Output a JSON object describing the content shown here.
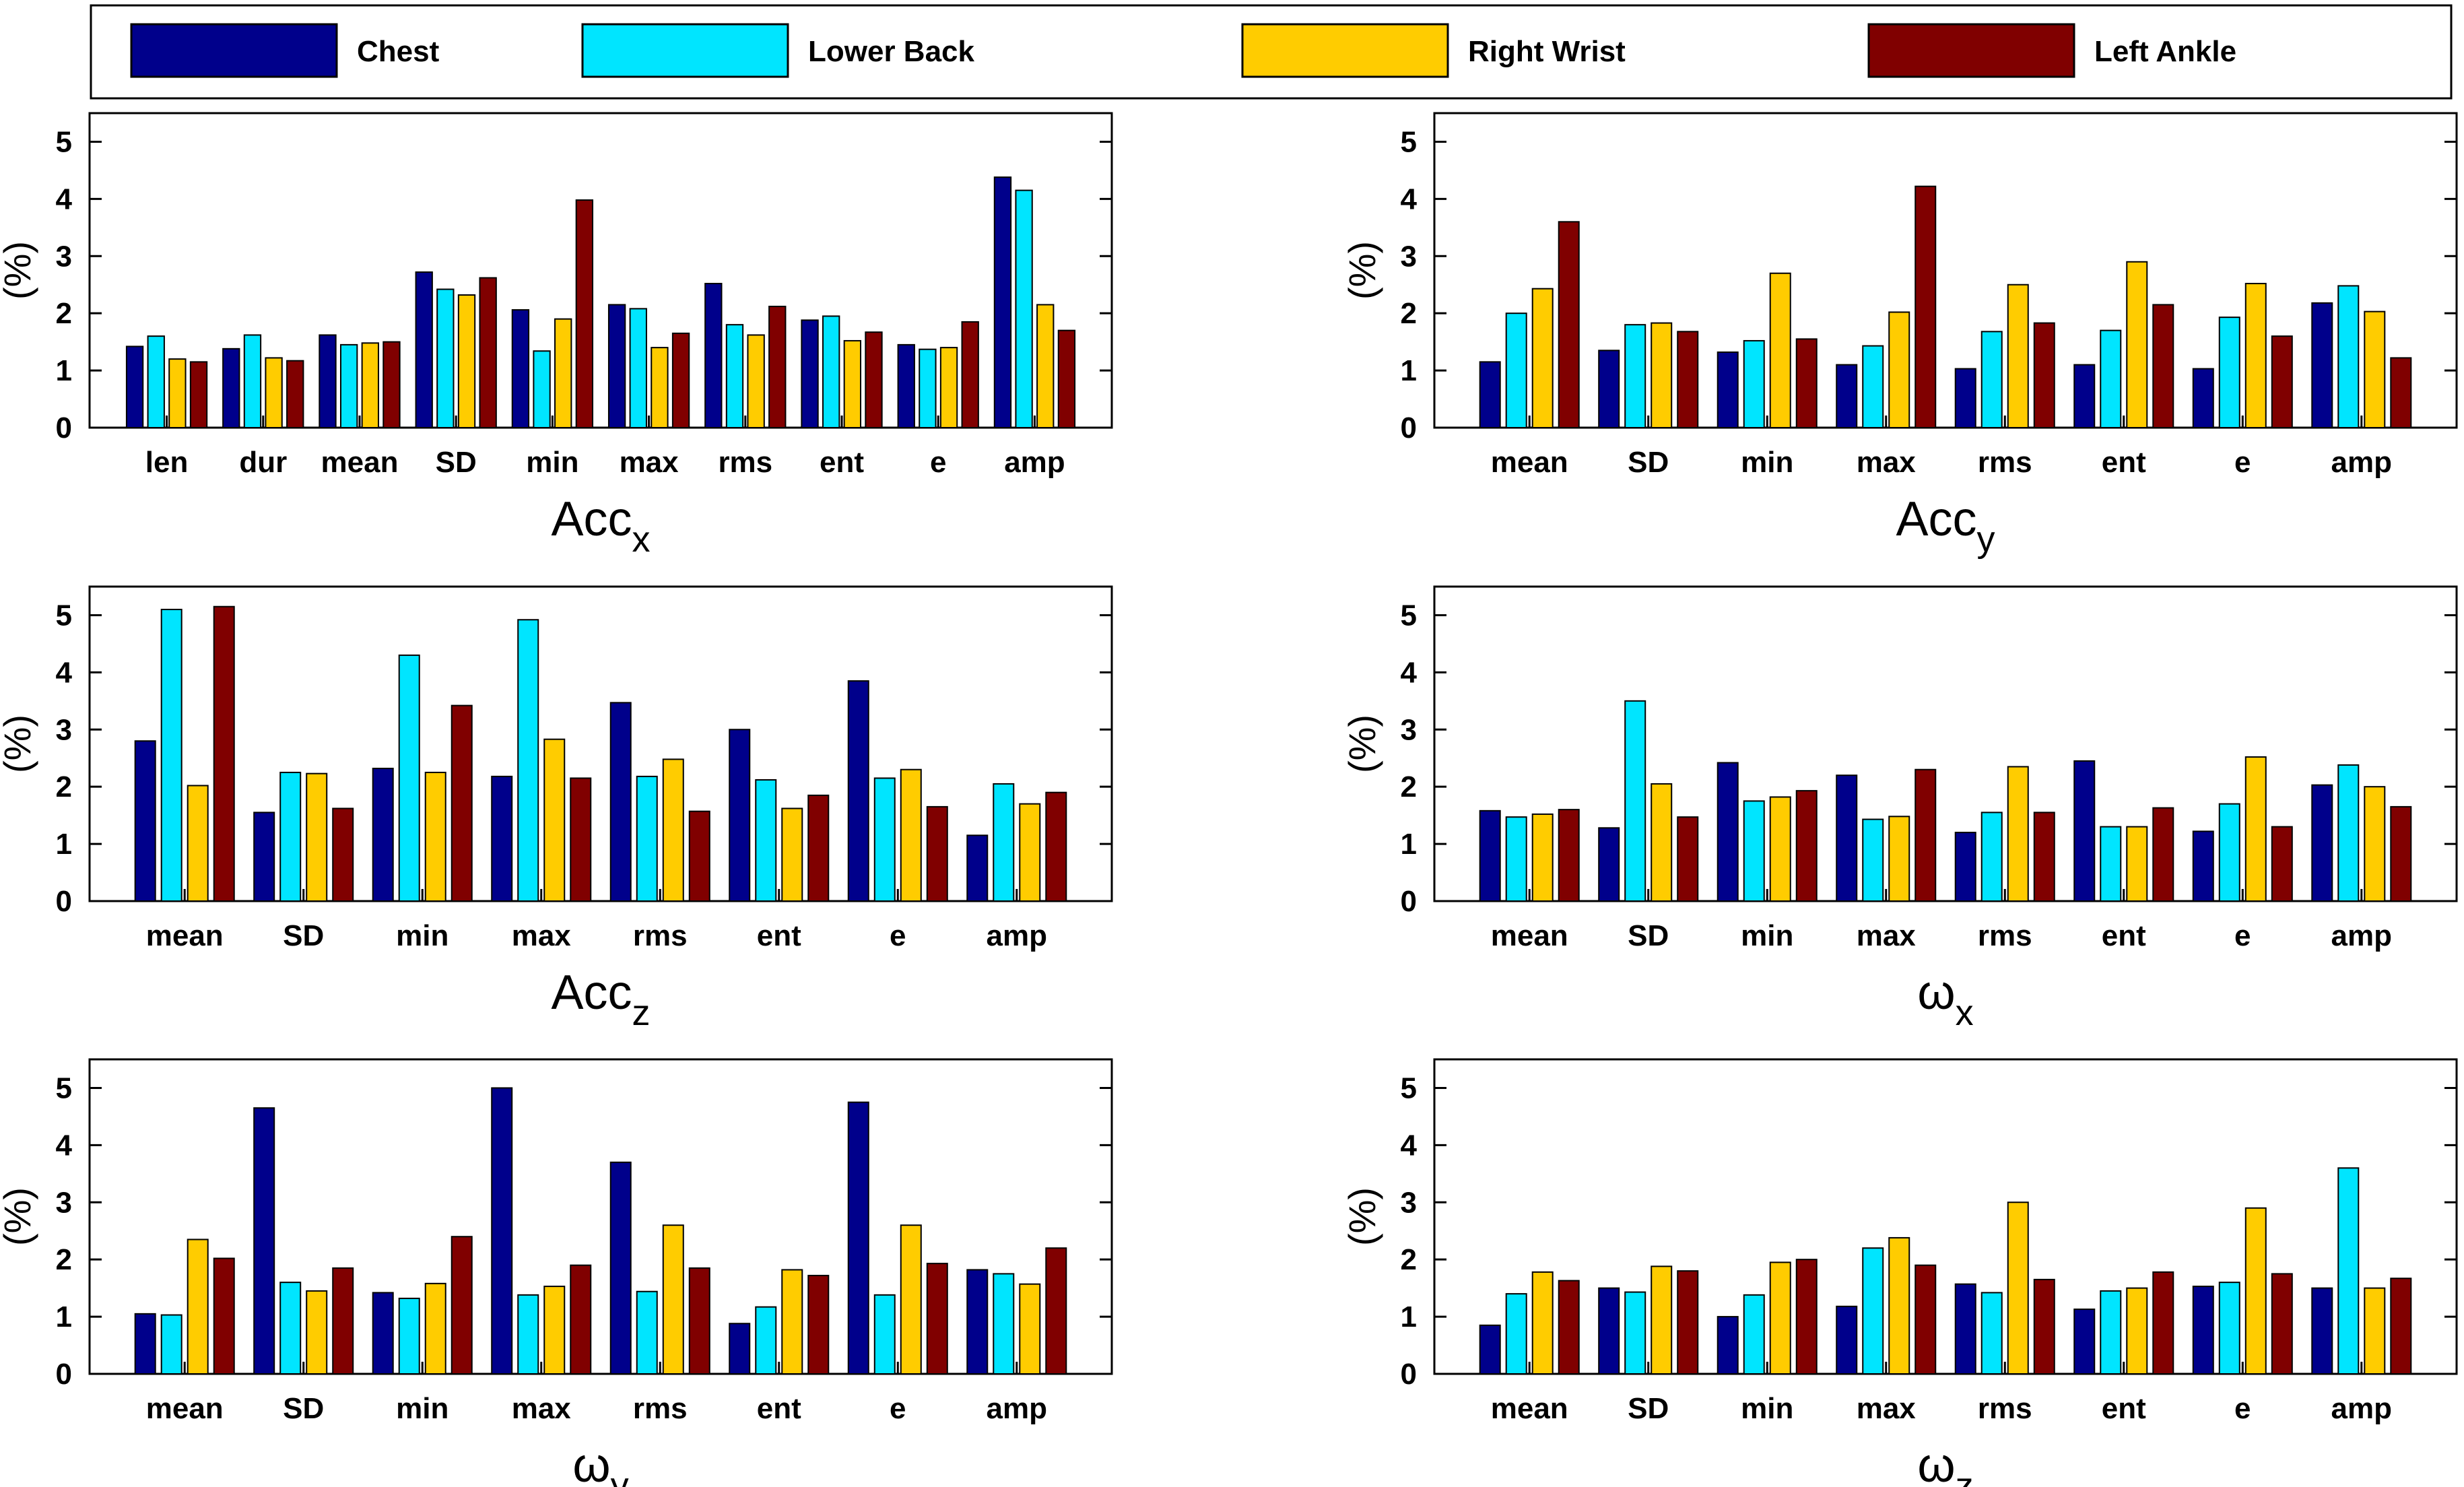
{
  "legend": {
    "entries": [
      "Chest",
      "Lower Back",
      "Right Wrist",
      "Left Ankle"
    ],
    "colors": [
      "#00008B",
      "#00E5FF",
      "#FFCC00",
      "#800000"
    ],
    "placement": "top"
  },
  "chart_data": [
    {
      "type": "bar",
      "title": "Acc",
      "title_sub": "x",
      "ylabel": "(%)",
      "ylim": [
        0,
        5.5
      ],
      "yticks": [
        0,
        1,
        2,
        3,
        4,
        5
      ],
      "categories": [
        "len",
        "dur",
        "mean",
        "SD",
        "min",
        "max",
        "rms",
        "ent",
        "e",
        "amp"
      ],
      "series": [
        {
          "name": "Chest",
          "values": [
            1.42,
            1.38,
            1.62,
            2.72,
            2.06,
            2.15,
            2.52,
            1.88,
            1.45,
            4.38
          ]
        },
        {
          "name": "Lower Back",
          "values": [
            1.6,
            1.62,
            1.45,
            2.42,
            1.34,
            2.08,
            1.8,
            1.95,
            1.37,
            4.15
          ]
        },
        {
          "name": "Right Wrist",
          "values": [
            1.2,
            1.22,
            1.48,
            2.32,
            1.9,
            1.4,
            1.62,
            1.52,
            1.4,
            2.15
          ]
        },
        {
          "name": "Left Ankle",
          "values": [
            1.15,
            1.17,
            1.5,
            2.62,
            3.98,
            1.65,
            2.12,
            1.67,
            1.85,
            1.7
          ]
        }
      ]
    },
    {
      "type": "bar",
      "title": "Acc",
      "title_sub": "y",
      "ylabel": "(%)",
      "ylim": [
        0,
        5.5
      ],
      "yticks": [
        0,
        1,
        2,
        3,
        4,
        5
      ],
      "categories": [
        "mean",
        "SD",
        "min",
        "max",
        "rms",
        "ent",
        "e",
        "amp"
      ],
      "series": [
        {
          "name": "Chest",
          "values": [
            1.15,
            1.35,
            1.32,
            1.1,
            1.03,
            1.1,
            1.03,
            2.18
          ]
        },
        {
          "name": "Lower Back",
          "values": [
            2.0,
            1.8,
            1.52,
            1.43,
            1.68,
            1.7,
            1.93,
            2.48
          ]
        },
        {
          "name": "Right Wrist",
          "values": [
            2.43,
            1.83,
            2.7,
            2.02,
            2.5,
            2.9,
            2.52,
            2.03
          ]
        },
        {
          "name": "Left Ankle",
          "values": [
            3.6,
            1.68,
            1.55,
            4.22,
            1.83,
            2.15,
            1.6,
            1.22
          ]
        }
      ]
    },
    {
      "type": "bar",
      "title": "Acc",
      "title_sub": "z",
      "ylabel": "(%)",
      "ylim": [
        0,
        5.5
      ],
      "yticks": [
        0,
        1,
        2,
        3,
        4,
        5
      ],
      "categories": [
        "mean",
        "SD",
        "min",
        "max",
        "rms",
        "ent",
        "e",
        "amp"
      ],
      "series": [
        {
          "name": "Chest",
          "values": [
            2.8,
            1.55,
            2.32,
            2.18,
            3.47,
            3.0,
            3.85,
            1.15
          ]
        },
        {
          "name": "Lower Back",
          "values": [
            5.1,
            2.25,
            4.3,
            4.92,
            2.18,
            2.12,
            2.15,
            2.05
          ]
        },
        {
          "name": "Right Wrist",
          "values": [
            2.02,
            2.23,
            2.25,
            2.83,
            2.48,
            1.62,
            2.3,
            1.7
          ]
        },
        {
          "name": "Left Ankle",
          "values": [
            5.15,
            1.62,
            3.42,
            2.15,
            1.57,
            1.85,
            1.65,
            1.9
          ]
        }
      ]
    },
    {
      "type": "bar",
      "title": "ω",
      "title_sub": "x",
      "ylabel": "(%)",
      "ylim": [
        0,
        5.5
      ],
      "yticks": [
        0,
        1,
        2,
        3,
        4,
        5
      ],
      "categories": [
        "mean",
        "SD",
        "min",
        "max",
        "rms",
        "ent",
        "e",
        "amp"
      ],
      "series": [
        {
          "name": "Chest",
          "values": [
            1.58,
            1.28,
            2.42,
            2.2,
            1.2,
            2.45,
            1.22,
            2.03
          ]
        },
        {
          "name": "Lower Back",
          "values": [
            1.47,
            3.5,
            1.75,
            1.43,
            1.55,
            1.3,
            1.7,
            2.38
          ]
        },
        {
          "name": "Right Wrist",
          "values": [
            1.52,
            2.05,
            1.82,
            1.48,
            2.35,
            1.3,
            2.52,
            2.0
          ]
        },
        {
          "name": "Left Ankle",
          "values": [
            1.6,
            1.47,
            1.93,
            2.3,
            1.55,
            1.63,
            1.3,
            1.65
          ]
        }
      ]
    },
    {
      "type": "bar",
      "title": "ω",
      "title_sub": "y",
      "ylabel": "(%)",
      "ylim": [
        0,
        5.5
      ],
      "yticks": [
        0,
        1,
        2,
        3,
        4,
        5
      ],
      "categories": [
        "mean",
        "SD",
        "min",
        "max",
        "rms",
        "ent",
        "e",
        "amp"
      ],
      "series": [
        {
          "name": "Chest",
          "values": [
            1.05,
            4.65,
            1.42,
            5.0,
            3.7,
            0.88,
            4.75,
            1.82
          ]
        },
        {
          "name": "Lower Back",
          "values": [
            1.03,
            1.6,
            1.32,
            1.38,
            1.44,
            1.17,
            1.38,
            1.75
          ]
        },
        {
          "name": "Right Wrist",
          "values": [
            2.35,
            1.45,
            1.58,
            1.53,
            2.6,
            1.82,
            2.6,
            1.57
          ]
        },
        {
          "name": "Left Ankle",
          "values": [
            2.02,
            1.85,
            2.4,
            1.9,
            1.85,
            1.72,
            1.93,
            2.2
          ]
        }
      ]
    },
    {
      "type": "bar",
      "title": "ω",
      "title_sub": "z",
      "ylabel": "(%)",
      "ylim": [
        0,
        5.5
      ],
      "yticks": [
        0,
        1,
        2,
        3,
        4,
        5
      ],
      "categories": [
        "mean",
        "SD",
        "min",
        "max",
        "rms",
        "ent",
        "e",
        "amp"
      ],
      "series": [
        {
          "name": "Chest",
          "values": [
            0.85,
            1.5,
            1.0,
            1.18,
            1.57,
            1.13,
            1.53,
            1.5
          ]
        },
        {
          "name": "Lower Back",
          "values": [
            1.4,
            1.43,
            1.38,
            2.2,
            1.42,
            1.45,
            1.6,
            3.6
          ]
        },
        {
          "name": "Right Wrist",
          "values": [
            1.78,
            1.88,
            1.95,
            2.38,
            3.0,
            1.5,
            2.9,
            1.5
          ]
        },
        {
          "name": "Left Ankle",
          "values": [
            1.63,
            1.8,
            2.0,
            1.9,
            1.65,
            1.78,
            1.75,
            1.67
          ]
        }
      ]
    }
  ]
}
